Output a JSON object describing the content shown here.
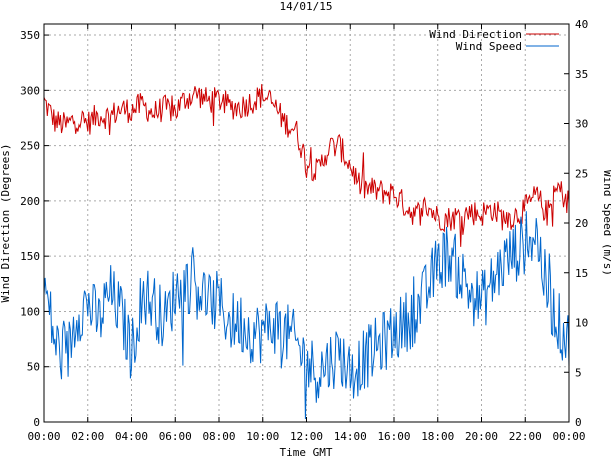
{
  "chart_data": {
    "type": "line",
    "title": "14/01/15",
    "xlabel": "Time GMT",
    "ylabel_left": "Wind Direction (Degrees)",
    "ylabel_right": "Wind Speed (m/s)",
    "x_ticks": [
      "00:00",
      "02:00",
      "04:00",
      "06:00",
      "08:00",
      "10:00",
      "12:00",
      "14:00",
      "16:00",
      "18:00",
      "20:00",
      "22:00",
      "00:00"
    ],
    "y_left_ticks": [
      "0",
      "50",
      "100",
      "150",
      "200",
      "250",
      "300",
      "350"
    ],
    "y_right_ticks": [
      "0",
      "5",
      "10",
      "15",
      "20",
      "25",
      "30",
      "35",
      "40"
    ],
    "x_range_hours": [
      0,
      24
    ],
    "y_left_range": [
      0,
      360
    ],
    "y_right_range": [
      0,
      40
    ],
    "grid": true,
    "legend_position": "top-right",
    "series": [
      {
        "name": "Wind Direction",
        "axis": "left",
        "color": "#cc0000",
        "points": [
          [
            0,
            290
          ],
          [
            0.5,
            272
          ],
          [
            1,
            268
          ],
          [
            1.5,
            275
          ],
          [
            2,
            270
          ],
          [
            2.5,
            278
          ],
          [
            3,
            276
          ],
          [
            3.5,
            283
          ],
          [
            4,
            282
          ],
          [
            4.5,
            287
          ],
          [
            5,
            279
          ],
          [
            5.5,
            284
          ],
          [
            6,
            281
          ],
          [
            6.5,
            293
          ],
          [
            7,
            297
          ],
          [
            7.5,
            290
          ],
          [
            8,
            292
          ],
          [
            8.5,
            285
          ],
          [
            9,
            285
          ],
          [
            9.5,
            290
          ],
          [
            10,
            296
          ],
          [
            10.5,
            287
          ],
          [
            11,
            271
          ],
          [
            11.5,
            265
          ],
          [
            12,
            235
          ],
          [
            12.5,
            226
          ],
          [
            13,
            248
          ],
          [
            13.5,
            250
          ],
          [
            14,
            232
          ],
          [
            14.5,
            212
          ],
          [
            15,
            210
          ],
          [
            15.5,
            208
          ],
          [
            16,
            207
          ],
          [
            16.5,
            196
          ],
          [
            17,
            187
          ],
          [
            17.5,
            196
          ],
          [
            18,
            185
          ],
          [
            18.5,
            184
          ],
          [
            19,
            186
          ],
          [
            19.5,
            190
          ],
          [
            20,
            188
          ],
          [
            20.5,
            193
          ],
          [
            21,
            184
          ],
          [
            21.5,
            186
          ],
          [
            22,
            193
          ],
          [
            22.5,
            205
          ],
          [
            23,
            188
          ],
          [
            23.5,
            212
          ],
          [
            24,
            198
          ]
        ]
      },
      {
        "name": "Wind Speed",
        "axis": "right",
        "color": "#0066cc",
        "points": [
          [
            0,
            14
          ],
          [
            0.5,
            8
          ],
          [
            1,
            6
          ],
          [
            1.5,
            11
          ],
          [
            2,
            12
          ],
          [
            2.5,
            10
          ],
          [
            3,
            13
          ],
          [
            3.5,
            11
          ],
          [
            4,
            7
          ],
          [
            4.5,
            13
          ],
          [
            5,
            12
          ],
          [
            5.5,
            10
          ],
          [
            6,
            13
          ],
          [
            6.5,
            14
          ],
          [
            7,
            14
          ],
          [
            7.5,
            12
          ],
          [
            8,
            12
          ],
          [
            8.5,
            10
          ],
          [
            9,
            10
          ],
          [
            9.5,
            9
          ],
          [
            10,
            9
          ],
          [
            10.5,
            10
          ],
          [
            11,
            9
          ],
          [
            11.5,
            8
          ],
          [
            12,
            6
          ],
          [
            12.5,
            5
          ],
          [
            13,
            6
          ],
          [
            13.5,
            7
          ],
          [
            14,
            5
          ],
          [
            14.5,
            6
          ],
          [
            15,
            7
          ],
          [
            15.5,
            8
          ],
          [
            16,
            9
          ],
          [
            16.5,
            10
          ],
          [
            17,
            11
          ],
          [
            17.5,
            13
          ],
          [
            18,
            16
          ],
          [
            18.5,
            17
          ],
          [
            19,
            15
          ],
          [
            19.5,
            13
          ],
          [
            20,
            12
          ],
          [
            20.5,
            14
          ],
          [
            21,
            16
          ],
          [
            21.5,
            17
          ],
          [
            22,
            18
          ],
          [
            22.5,
            19
          ],
          [
            23,
            13
          ],
          [
            23.5,
            10
          ],
          [
            24,
            8
          ]
        ]
      }
    ]
  }
}
